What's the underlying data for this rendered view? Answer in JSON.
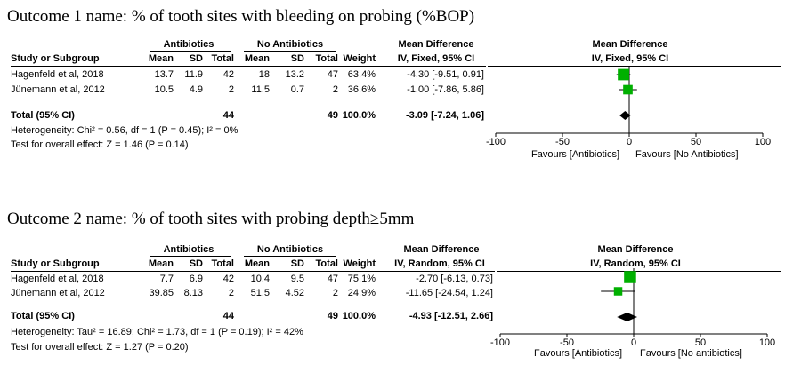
{
  "outcomes": [
    {
      "title": "Outcome 1 name: % of tooth sites with bleeding on probing (%BOP)",
      "group1": "Antibiotics",
      "group2": "No Antibiotics",
      "md_header": "Mean Difference",
      "method": "IV, Fixed, 95% CI",
      "col_study": "Study or Subgroup",
      "col_mean": "Mean",
      "col_sd": "SD",
      "col_total": "Total",
      "col_weight": "Weight",
      "studies": [
        {
          "name": "Hagenfeld et al, 2018",
          "m1": "13.7",
          "sd1": "11.9",
          "n1": "42",
          "m2": "18",
          "sd2": "13.2",
          "n2": "47",
          "weight": "63.4%",
          "ci": "-4.30 [-9.51, 0.91]"
        },
        {
          "name": "Jünemann et al, 2012",
          "m1": "10.5",
          "sd1": "4.9",
          "n1": "2",
          "m2": "11.5",
          "sd2": "0.7",
          "n2": "2",
          "weight": "36.6%",
          "ci": "-1.00 [-7.86, 5.86]"
        }
      ],
      "total_label": "Total (95% CI)",
      "total_n1": "44",
      "total_n2": "49",
      "total_weight": "100.0%",
      "total_ci": "-3.09 [-7.24, 1.06]",
      "heterogeneity": "Heterogeneity: Chi² = 0.56, df = 1 (P = 0.45); I² = 0%",
      "overall": "Test for overall effect: Z = 1.46 (P = 0.14)",
      "favours_left": "Favours [Antibiotics]",
      "favours_right": "Favours [No Antibiotics]"
    },
    {
      "title": "Outcome 2 name: % of tooth sites with probing depth≥5mm",
      "group1": "Antibiotics",
      "group2": "No Antibiotics",
      "md_header": "Mean Difference",
      "method": "IV, Random, 95% CI",
      "col_study": "Study or Subgroup",
      "col_mean": "Mean",
      "col_sd": "SD",
      "col_total": "Total",
      "col_weight": "Weight",
      "studies": [
        {
          "name": "Hagenfeld et al, 2018",
          "m1": "7.7",
          "sd1": "6.9",
          "n1": "42",
          "m2": "10.4",
          "sd2": "9.5",
          "n2": "47",
          "weight": "75.1%",
          "ci": "-2.70 [-6.13, 0.73]"
        },
        {
          "name": "Jünemann et al, 2012",
          "m1": "39.85",
          "sd1": "8.13",
          "n1": "2",
          "m2": "51.5",
          "sd2": "4.52",
          "n2": "2",
          "weight": "24.9%",
          "ci": "-11.65 [-24.54, 1.24]"
        }
      ],
      "total_label": "Total (95% CI)",
      "total_n1": "44",
      "total_n2": "49",
      "total_weight": "100.0%",
      "total_ci": "-4.93 [-12.51, 2.66]",
      "heterogeneity": "Heterogeneity: Tau² = 16.89; Chi² = 1.73, df = 1 (P = 0.19); I² = 42%",
      "overall": "Test for overall effect: Z = 1.27 (P = 0.20)",
      "favours_left": "Favours [Antibiotics]",
      "favours_right": "Favours [No antibiotics]"
    }
  ],
  "chart_data": [
    {
      "type": "forest",
      "axis_ticks": [
        "-100",
        "-50",
        "0",
        "50",
        "100"
      ],
      "xlim": [
        -100,
        100
      ],
      "studies": [
        {
          "md": -4.3,
          "lo": -9.51,
          "hi": 0.91,
          "weight": 63.4
        },
        {
          "md": -1.0,
          "lo": -7.86,
          "hi": 5.86,
          "weight": 36.6
        }
      ],
      "total": {
        "md": -3.09,
        "lo": -7.24,
        "hi": 1.06
      },
      "colors": {
        "study": "#00b000",
        "diamond": "#000000"
      }
    },
    {
      "type": "forest",
      "axis_ticks": [
        "-100",
        "-50",
        "0",
        "50",
        "100"
      ],
      "xlim": [
        -100,
        100
      ],
      "studies": [
        {
          "md": -2.7,
          "lo": -6.13,
          "hi": 0.73,
          "weight": 75.1
        },
        {
          "md": -11.65,
          "lo": -24.54,
          "hi": 1.24,
          "weight": 24.9
        }
      ],
      "total": {
        "md": -4.93,
        "lo": -12.51,
        "hi": 2.66
      },
      "colors": {
        "study": "#00b000",
        "diamond": "#000000"
      }
    }
  ]
}
